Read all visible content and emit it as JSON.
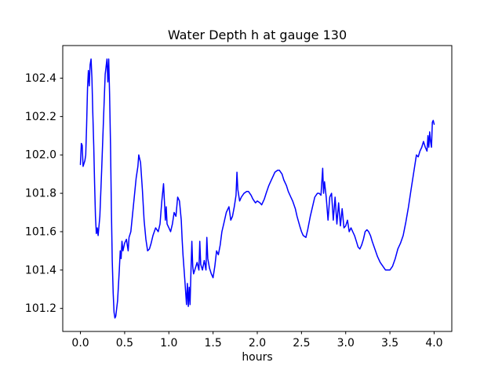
{
  "chart_data": {
    "type": "line",
    "title": "Water Depth h at gauge 130",
    "xlabel": "hours",
    "ylabel": "",
    "grid": false,
    "legend": null,
    "line_color": "#0000ff",
    "xlim": [
      -0.2,
      4.2
    ],
    "ylim": [
      101.08,
      102.57
    ],
    "xticks": [
      0.0,
      0.5,
      1.0,
      1.5,
      2.0,
      2.5,
      3.0,
      3.5,
      4.0
    ],
    "xtick_labels": [
      "0.0",
      "0.5",
      "1.0",
      "1.5",
      "2.0",
      "2.5",
      "3.0",
      "3.5",
      "4.0"
    ],
    "yticks": [
      101.2,
      101.4,
      101.6,
      101.8,
      102.0,
      102.2,
      102.4
    ],
    "ytick_labels": [
      "101.2",
      "101.4",
      "101.6",
      "101.8",
      "102.0",
      "102.2",
      "102.4"
    ],
    "points": [
      [
        0.0,
        101.95
      ],
      [
        0.01,
        102.06
      ],
      [
        0.02,
        102.05
      ],
      [
        0.03,
        101.94
      ],
      [
        0.05,
        101.97
      ],
      [
        0.06,
        102.0
      ],
      [
        0.07,
        102.15
      ],
      [
        0.08,
        102.35
      ],
      [
        0.09,
        102.44
      ],
      [
        0.1,
        102.36
      ],
      [
        0.11,
        102.47
      ],
      [
        0.12,
        102.5
      ],
      [
        0.13,
        102.4
      ],
      [
        0.14,
        102.22
      ],
      [
        0.15,
        102.05
      ],
      [
        0.16,
        101.85
      ],
      [
        0.17,
        101.68
      ],
      [
        0.18,
        101.59
      ],
      [
        0.19,
        101.62
      ],
      [
        0.2,
        101.58
      ],
      [
        0.22,
        101.68
      ],
      [
        0.24,
        101.92
      ],
      [
        0.26,
        102.18
      ],
      [
        0.28,
        102.42
      ],
      [
        0.3,
        102.5
      ],
      [
        0.31,
        102.38
      ],
      [
        0.32,
        102.5
      ],
      [
        0.33,
        102.32
      ],
      [
        0.34,
        102.05
      ],
      [
        0.35,
        101.72
      ],
      [
        0.36,
        101.45
      ],
      [
        0.37,
        101.28
      ],
      [
        0.38,
        101.18
      ],
      [
        0.39,
        101.15
      ],
      [
        0.4,
        101.16
      ],
      [
        0.42,
        101.24
      ],
      [
        0.44,
        101.4
      ],
      [
        0.45,
        101.5
      ],
      [
        0.46,
        101.46
      ],
      [
        0.47,
        101.55
      ],
      [
        0.48,
        101.5
      ],
      [
        0.5,
        101.54
      ],
      [
        0.52,
        101.56
      ],
      [
        0.54,
        101.5
      ],
      [
        0.55,
        101.57
      ],
      [
        0.57,
        101.6
      ],
      [
        0.6,
        101.74
      ],
      [
        0.63,
        101.88
      ],
      [
        0.65,
        101.94
      ],
      [
        0.66,
        102.0
      ],
      [
        0.68,
        101.96
      ],
      [
        0.7,
        101.82
      ],
      [
        0.72,
        101.66
      ],
      [
        0.74,
        101.56
      ],
      [
        0.76,
        101.5
      ],
      [
        0.78,
        101.51
      ],
      [
        0.8,
        101.54
      ],
      [
        0.82,
        101.58
      ],
      [
        0.85,
        101.62
      ],
      [
        0.88,
        101.6
      ],
      [
        0.9,
        101.64
      ],
      [
        0.92,
        101.76
      ],
      [
        0.94,
        101.85
      ],
      [
        0.95,
        101.76
      ],
      [
        0.96,
        101.66
      ],
      [
        0.97,
        101.73
      ],
      [
        0.98,
        101.64
      ],
      [
        1.0,
        101.62
      ],
      [
        1.02,
        101.6
      ],
      [
        1.04,
        101.64
      ],
      [
        1.06,
        101.7
      ],
      [
        1.08,
        101.68
      ],
      [
        1.1,
        101.78
      ],
      [
        1.12,
        101.76
      ],
      [
        1.14,
        101.66
      ],
      [
        1.15,
        101.56
      ],
      [
        1.16,
        101.48
      ],
      [
        1.18,
        101.35
      ],
      [
        1.2,
        101.22
      ],
      [
        1.21,
        101.33
      ],
      [
        1.22,
        101.21
      ],
      [
        1.23,
        101.31
      ],
      [
        1.24,
        101.22
      ],
      [
        1.25,
        101.4
      ],
      [
        1.26,
        101.55
      ],
      [
        1.27,
        101.42
      ],
      [
        1.28,
        101.38
      ],
      [
        1.3,
        101.41
      ],
      [
        1.32,
        101.44
      ],
      [
        1.34,
        101.4
      ],
      [
        1.35,
        101.55
      ],
      [
        1.36,
        101.43
      ],
      [
        1.38,
        101.4
      ],
      [
        1.4,
        101.45
      ],
      [
        1.42,
        101.4
      ],
      [
        1.43,
        101.57
      ],
      [
        1.44,
        101.46
      ],
      [
        1.46,
        101.41
      ],
      [
        1.48,
        101.38
      ],
      [
        1.5,
        101.36
      ],
      [
        1.52,
        101.42
      ],
      [
        1.54,
        101.5
      ],
      [
        1.56,
        101.48
      ],
      [
        1.58,
        101.53
      ],
      [
        1.6,
        101.6
      ],
      [
        1.62,
        101.64
      ],
      [
        1.65,
        101.7
      ],
      [
        1.68,
        101.73
      ],
      [
        1.7,
        101.66
      ],
      [
        1.72,
        101.68
      ],
      [
        1.74,
        101.73
      ],
      [
        1.76,
        101.79
      ],
      [
        1.77,
        101.91
      ],
      [
        1.78,
        101.82
      ],
      [
        1.8,
        101.76
      ],
      [
        1.82,
        101.78
      ],
      [
        1.85,
        101.8
      ],
      [
        1.88,
        101.81
      ],
      [
        1.9,
        101.81
      ],
      [
        1.93,
        101.79
      ],
      [
        1.95,
        101.77
      ],
      [
        1.98,
        101.75
      ],
      [
        2.0,
        101.76
      ],
      [
        2.03,
        101.75
      ],
      [
        2.05,
        101.74
      ],
      [
        2.08,
        101.77
      ],
      [
        2.1,
        101.8
      ],
      [
        2.13,
        101.84
      ],
      [
        2.15,
        101.86
      ],
      [
        2.18,
        101.89
      ],
      [
        2.2,
        101.91
      ],
      [
        2.23,
        101.92
      ],
      [
        2.25,
        101.92
      ],
      [
        2.28,
        101.9
      ],
      [
        2.3,
        101.87
      ],
      [
        2.33,
        101.84
      ],
      [
        2.35,
        101.81
      ],
      [
        2.38,
        101.78
      ],
      [
        2.4,
        101.76
      ],
      [
        2.43,
        101.72
      ],
      [
        2.45,
        101.68
      ],
      [
        2.48,
        101.63
      ],
      [
        2.5,
        101.6
      ],
      [
        2.52,
        101.58
      ],
      [
        2.55,
        101.57
      ],
      [
        2.57,
        101.61
      ],
      [
        2.6,
        101.68
      ],
      [
        2.63,
        101.74
      ],
      [
        2.65,
        101.78
      ],
      [
        2.68,
        101.8
      ],
      [
        2.7,
        101.8
      ],
      [
        2.72,
        101.79
      ],
      [
        2.73,
        101.86
      ],
      [
        2.74,
        101.93
      ],
      [
        2.75,
        101.8
      ],
      [
        2.76,
        101.86
      ],
      [
        2.78,
        101.78
      ],
      [
        2.8,
        101.66
      ],
      [
        2.82,
        101.78
      ],
      [
        2.84,
        101.8
      ],
      [
        2.86,
        101.66
      ],
      [
        2.88,
        101.78
      ],
      [
        2.9,
        101.64
      ],
      [
        2.92,
        101.75
      ],
      [
        2.94,
        101.63
      ],
      [
        2.96,
        101.72
      ],
      [
        2.98,
        101.62
      ],
      [
        3.0,
        101.63
      ],
      [
        3.02,
        101.66
      ],
      [
        3.04,
        101.6
      ],
      [
        3.06,
        101.62
      ],
      [
        3.08,
        101.6
      ],
      [
        3.1,
        101.58
      ],
      [
        3.12,
        101.55
      ],
      [
        3.14,
        101.52
      ],
      [
        3.16,
        101.51
      ],
      [
        3.18,
        101.53
      ],
      [
        3.2,
        101.56
      ],
      [
        3.22,
        101.6
      ],
      [
        3.24,
        101.61
      ],
      [
        3.26,
        101.6
      ],
      [
        3.28,
        101.58
      ],
      [
        3.3,
        101.55
      ],
      [
        3.33,
        101.51
      ],
      [
        3.36,
        101.47
      ],
      [
        3.39,
        101.44
      ],
      [
        3.42,
        101.42
      ],
      [
        3.45,
        101.4
      ],
      [
        3.48,
        101.4
      ],
      [
        3.5,
        101.4
      ],
      [
        3.53,
        101.42
      ],
      [
        3.56,
        101.46
      ],
      [
        3.59,
        101.51
      ],
      [
        3.62,
        101.54
      ],
      [
        3.65,
        101.58
      ],
      [
        3.68,
        101.65
      ],
      [
        3.71,
        101.73
      ],
      [
        3.74,
        101.82
      ],
      [
        3.77,
        101.91
      ],
      [
        3.8,
        102.0
      ],
      [
        3.82,
        101.99
      ],
      [
        3.84,
        102.02
      ],
      [
        3.86,
        102.04
      ],
      [
        3.88,
        102.07
      ],
      [
        3.9,
        102.04
      ],
      [
        3.92,
        102.02
      ],
      [
        3.93,
        102.1
      ],
      [
        3.94,
        102.04
      ],
      [
        3.95,
        102.12
      ],
      [
        3.96,
        102.07
      ],
      [
        3.97,
        102.04
      ],
      [
        3.98,
        102.17
      ],
      [
        3.99,
        102.18
      ],
      [
        4.0,
        102.16
      ]
    ]
  }
}
